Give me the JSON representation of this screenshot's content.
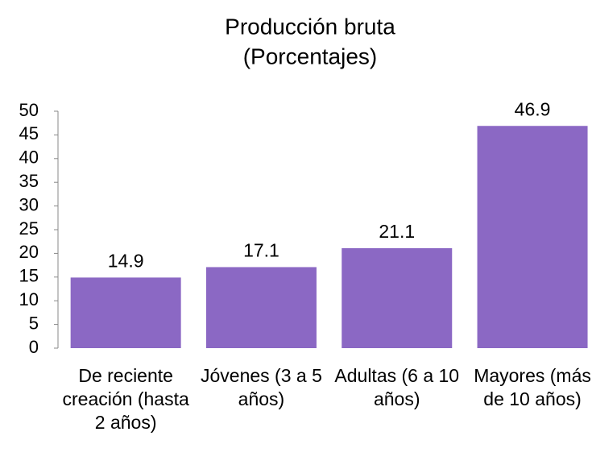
{
  "chart_data": {
    "type": "bar",
    "title": "Producción bruta",
    "subtitle": "(Porcentajes)",
    "categories": [
      "De reciente creación (hasta 2 años)",
      "Jóvenes (3 a 5 años)",
      "Adultas (6 a 10 años)",
      "Mayores (más de 10 años)"
    ],
    "values": [
      14.9,
      17.1,
      21.1,
      46.9
    ],
    "color": "#8b68c4",
    "ylim": [
      0,
      50
    ],
    "yticks": [
      0,
      5,
      10,
      15,
      20,
      25,
      30,
      35,
      40,
      45,
      50
    ],
    "grid": false
  }
}
